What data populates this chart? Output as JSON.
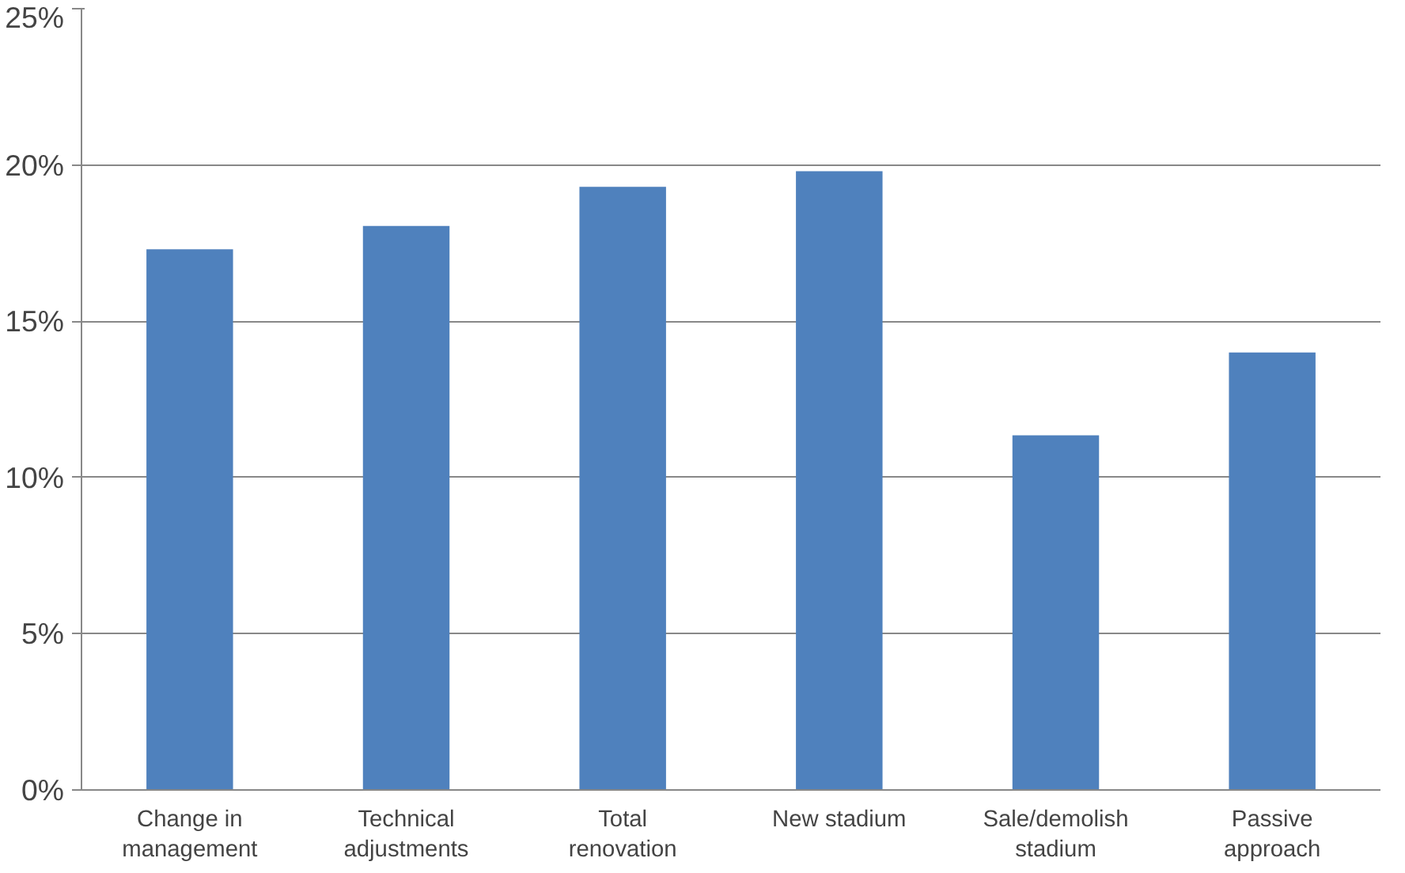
{
  "chart_data": {
    "type": "bar",
    "categories": [
      "Change in\nmanagement",
      "Technical\nadjustments",
      "Total\nrenovation",
      "New stadium",
      "Sale/demolish\nstadium",
      "Passive\napproach"
    ],
    "values": [
      17.3,
      18.05,
      19.3,
      19.8,
      11.35,
      14.0
    ],
    "color": "#4f81bd",
    "ylim": [
      0,
      25
    ],
    "yticks": [
      {
        "value": 0,
        "label": "0%"
      },
      {
        "value": 5,
        "label": "5%"
      },
      {
        "value": 10,
        "label": "10%"
      },
      {
        "value": 15,
        "label": "15%"
      },
      {
        "value": 20,
        "label": "20%"
      },
      {
        "value": 25,
        "label": "25%"
      }
    ],
    "grid": "y"
  }
}
